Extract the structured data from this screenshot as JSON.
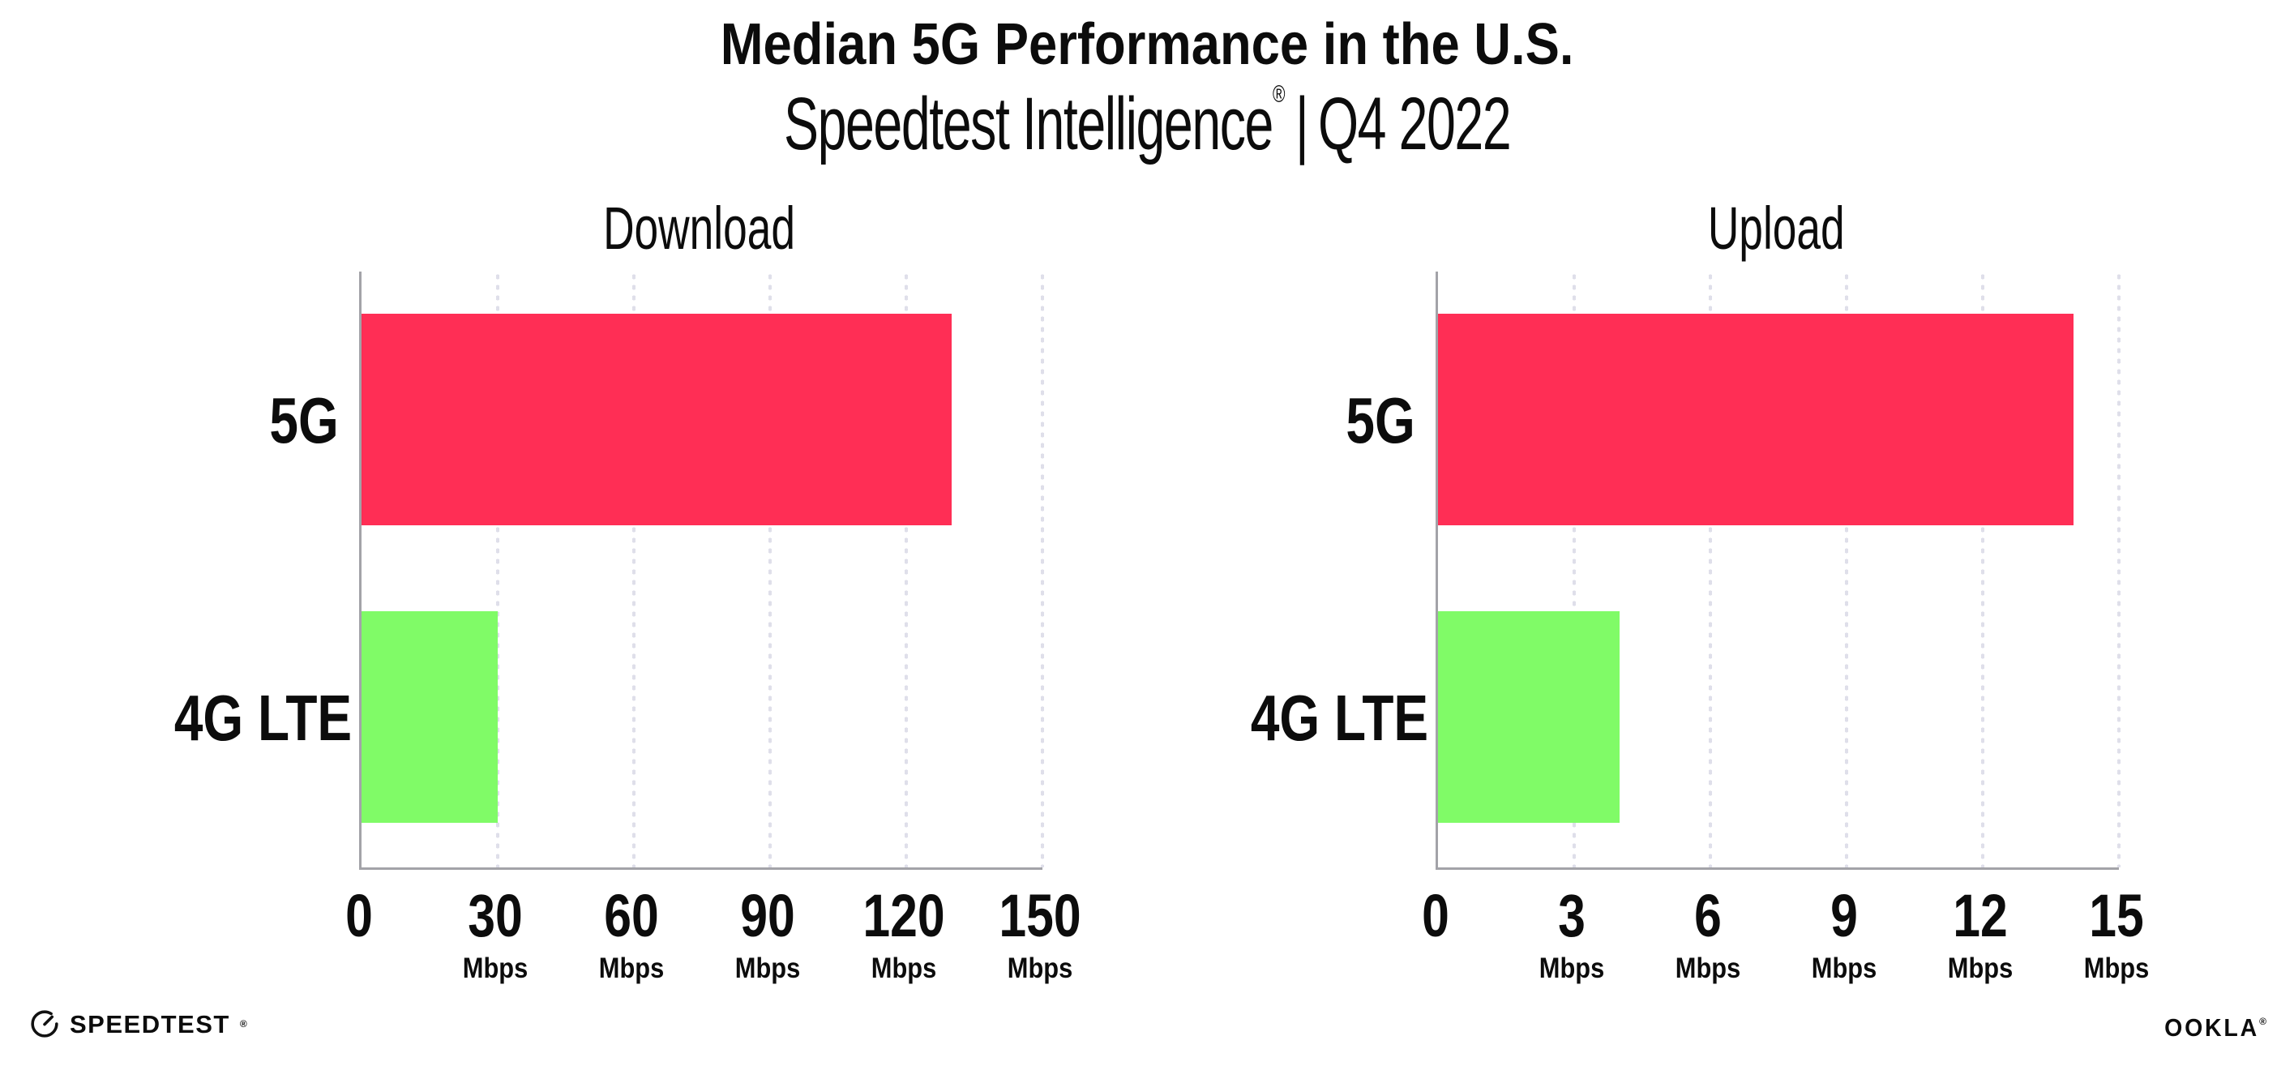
{
  "header": {
    "title": "Median 5G Performance in the U.S.",
    "subtitle_brand": "Speedtest Intelligence",
    "subtitle_reg": "®",
    "subtitle_sep": "|",
    "subtitle_period": "Q4 2022"
  },
  "chart_data": [
    {
      "type": "bar",
      "orientation": "horizontal",
      "title": "Download",
      "categories": [
        "5G",
        "4G LTE"
      ],
      "values": [
        130,
        30
      ],
      "unit": "Mbps",
      "xlim": [
        0,
        150
      ],
      "xticks": [
        0,
        30,
        60,
        90,
        120,
        150
      ],
      "grid": "dotted-vertical",
      "legend": "none",
      "bar_colors": [
        "#ff2e55",
        "#80fb67"
      ]
    },
    {
      "type": "bar",
      "orientation": "horizontal",
      "title": "Upload",
      "categories": [
        "5G",
        "4G LTE"
      ],
      "values": [
        14,
        4
      ],
      "unit": "Mbps",
      "xlim": [
        0,
        15
      ],
      "xticks": [
        0,
        3,
        6,
        9,
        12,
        15
      ],
      "grid": "dotted-vertical",
      "legend": "none",
      "bar_colors": [
        "#ff2e55",
        "#80fb67"
      ]
    }
  ],
  "footer": {
    "speedtest_logo_text": "SPEEDTEST",
    "speedtest_reg": "®",
    "ookla_logo_text": "OOKLA",
    "ookla_reg": "®"
  },
  "colors": {
    "bar_5g": "#ff2e55",
    "bar_4g_lte": "#80fb67",
    "axis_line": "#a3a3a8",
    "gridline": "#dfdfea",
    "text": "#0c0c0c",
    "background": "#ffffff"
  }
}
